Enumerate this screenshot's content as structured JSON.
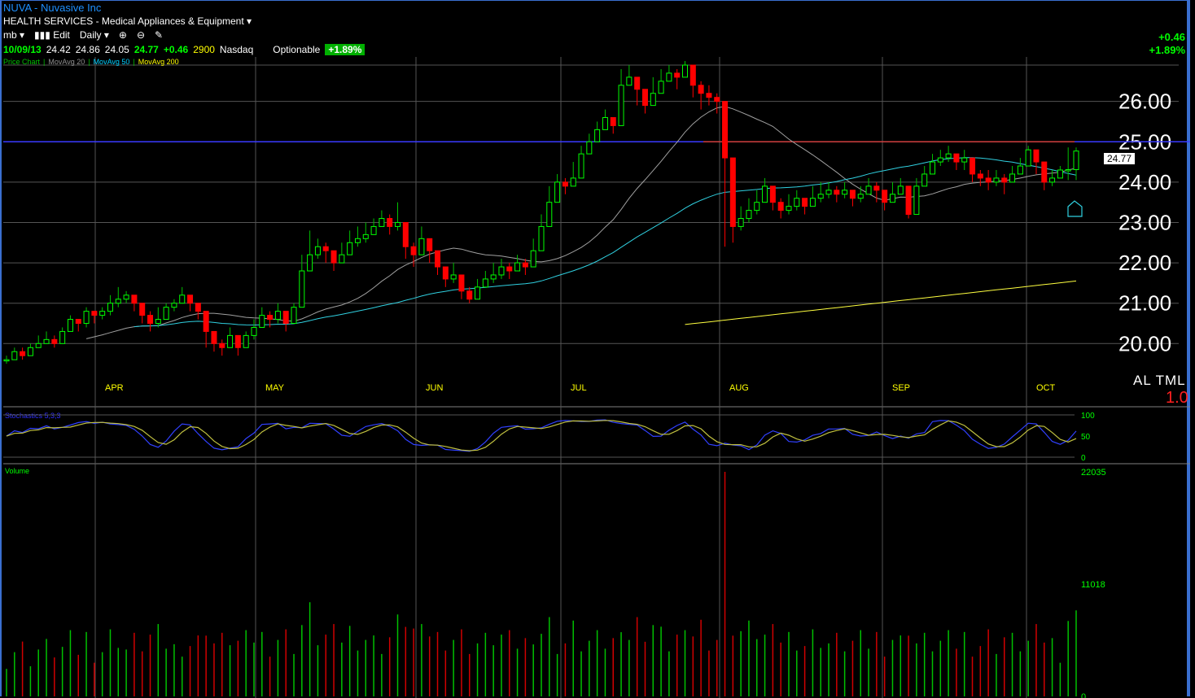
{
  "header": {
    "title": "NUVA - Nuvasive Inc",
    "industry": "HEALTH SERVICES - Medical Appliances & Equipment",
    "toolbar": {
      "profile": "mb",
      "edit": "Edit",
      "period": "Daily"
    },
    "quote": {
      "date": "10/09/13",
      "open": "24.42",
      "high": "24.86",
      "low": "24.05",
      "last": "24.77",
      "change": "+0.46",
      "volume": "2900",
      "exchange": "Nasdaq",
      "optionable": "Optionable",
      "pct": "+1.89%"
    },
    "change_right": "+0.46",
    "pct_right": "+1.89%",
    "legend": [
      "Price Chart",
      "MovAvg 20",
      "MovAvg 50",
      "MovAvg 200"
    ],
    "stoch_label": "Stochastics 5,3,3",
    "volume_label": "Volume",
    "altml": "AL TML",
    "altml_value": "1.0",
    "price_tag": "24.77"
  },
  "chart_data": {
    "type": "candlestick",
    "ylim": [
      19.2,
      26.9
    ],
    "yticks": [
      "20.00",
      "21.00",
      "22.00",
      "23.00",
      "24.00",
      "25.00",
      "26.00"
    ],
    "months": [
      "APR",
      "MAY",
      "JUN",
      "JUL",
      "AUG",
      "SEP",
      "OCT"
    ],
    "resistance": 25.0,
    "stoch_ticks": [
      "100",
      "50",
      "0"
    ],
    "volume_ticks": [
      "22035",
      "11018",
      "0"
    ],
    "candles": [
      [
        19.6,
        19.7,
        19.5
      ],
      [
        19.8,
        19.9,
        19.6
      ],
      [
        19.7,
        19.9,
        19.6
      ],
      [
        19.9,
        20.0,
        19.8
      ],
      [
        20.0,
        20.2,
        19.9
      ],
      [
        20.1,
        20.3,
        20.0
      ],
      [
        20.0,
        20.2,
        19.9
      ],
      [
        20.3,
        20.4,
        20.1
      ],
      [
        20.6,
        20.7,
        20.3
      ],
      [
        20.5,
        20.6,
        20.3
      ],
      [
        20.8,
        20.9,
        20.4
      ],
      [
        20.7,
        20.8,
        20.5
      ],
      [
        20.8,
        20.9,
        20.6
      ],
      [
        21.0,
        21.2,
        20.7
      ],
      [
        21.1,
        21.4,
        20.9
      ],
      [
        21.2,
        21.3,
        21.0
      ],
      [
        21.0,
        21.2,
        20.8
      ],
      [
        20.7,
        20.9,
        20.5
      ],
      [
        20.5,
        20.8,
        20.3
      ],
      [
        20.6,
        20.9,
        20.4
      ],
      [
        20.9,
        21.0,
        20.6
      ],
      [
        21.0,
        21.1,
        20.8
      ],
      [
        21.2,
        21.4,
        21.0
      ],
      [
        21.0,
        21.2,
        20.8
      ],
      [
        20.8,
        21.0,
        20.6
      ],
      [
        20.3,
        20.6,
        19.9
      ],
      [
        20.0,
        20.2,
        19.8
      ],
      [
        19.9,
        20.1,
        19.7
      ],
      [
        20.2,
        20.4,
        19.9
      ],
      [
        19.9,
        20.1,
        19.7
      ],
      [
        20.2,
        20.3,
        19.9
      ],
      [
        20.4,
        20.6,
        20.1
      ],
      [
        20.7,
        20.9,
        20.4
      ],
      [
        20.6,
        20.8,
        20.4
      ],
      [
        20.8,
        21.0,
        20.5
      ],
      [
        20.5,
        20.8,
        20.3
      ],
      [
        20.9,
        21.0,
        20.6
      ],
      [
        21.8,
        22.2,
        21.5
      ],
      [
        22.2,
        22.8,
        21.9
      ],
      [
        22.4,
        22.6,
        22.1
      ],
      [
        22.3,
        22.5,
        22.0
      ],
      [
        22.0,
        22.3,
        21.8
      ],
      [
        22.2,
        22.5,
        22.0
      ],
      [
        22.5,
        22.8,
        22.2
      ],
      [
        22.6,
        22.9,
        22.4
      ],
      [
        22.7,
        23.0,
        22.5
      ],
      [
        22.9,
        23.1,
        22.7
      ],
      [
        23.1,
        23.3,
        22.9
      ],
      [
        22.9,
        23.2,
        22.7
      ],
      [
        23.0,
        23.5,
        22.8
      ],
      [
        22.4,
        22.9,
        22.1
      ],
      [
        22.2,
        22.5,
        21.9
      ],
      [
        22.6,
        22.9,
        22.4
      ],
      [
        22.3,
        22.6,
        22.0
      ],
      [
        21.9,
        22.2,
        21.7
      ],
      [
        21.6,
        21.9,
        21.4
      ],
      [
        21.7,
        22.0,
        21.5
      ],
      [
        21.3,
        21.6,
        21.1
      ],
      [
        21.1,
        21.4,
        21.0
      ],
      [
        21.4,
        21.6,
        21.2
      ],
      [
        21.6,
        21.8,
        21.4
      ],
      [
        21.7,
        22.0,
        21.5
      ],
      [
        21.9,
        22.1,
        21.6
      ],
      [
        21.8,
        22.0,
        21.6
      ],
      [
        22.0,
        22.2,
        21.8
      ],
      [
        21.9,
        22.1,
        21.7
      ],
      [
        22.3,
        22.6,
        22.0
      ],
      [
        22.9,
        23.2,
        22.6
      ],
      [
        23.5,
        23.9,
        23.2
      ],
      [
        24.0,
        24.2,
        23.8
      ],
      [
        23.9,
        24.1,
        23.7
      ],
      [
        24.1,
        24.5,
        23.9
      ],
      [
        24.7,
        24.9,
        24.5
      ],
      [
        25.0,
        25.2,
        24.8
      ],
      [
        25.3,
        25.5,
        25.1
      ],
      [
        25.6,
        25.8,
        25.4
      ],
      [
        25.4,
        25.6,
        25.2
      ],
      [
        26.4,
        26.8,
        26.0
      ],
      [
        26.6,
        26.9,
        26.4
      ],
      [
        26.3,
        26.6,
        25.9
      ],
      [
        25.9,
        26.3,
        25.7
      ],
      [
        26.2,
        26.6,
        25.9
      ],
      [
        26.5,
        26.8,
        26.3
      ],
      [
        26.7,
        26.9,
        26.5
      ],
      [
        26.6,
        26.8,
        26.3
      ],
      [
        26.9,
        27.0,
        26.6
      ],
      [
        26.4,
        26.7,
        26.1
      ],
      [
        26.2,
        26.5,
        25.8
      ],
      [
        26.1,
        26.4,
        25.9
      ],
      [
        26.0,
        26.2,
        25.7
      ],
      [
        24.6,
        24.8,
        22.4
      ],
      [
        22.9,
        23.2,
        22.5
      ],
      [
        23.1,
        23.4,
        22.8
      ],
      [
        23.3,
        23.6,
        23.0
      ],
      [
        23.5,
        23.8,
        23.2
      ],
      [
        23.9,
        24.1,
        23.6
      ],
      [
        23.5,
        23.8,
        23.3
      ],
      [
        23.3,
        23.6,
        23.1
      ],
      [
        23.4,
        23.7,
        23.2
      ],
      [
        23.6,
        23.8,
        23.3
      ],
      [
        23.4,
        23.6,
        23.2
      ],
      [
        23.6,
        23.9,
        23.4
      ],
      [
        23.7,
        24.0,
        23.5
      ],
      [
        23.8,
        24.0,
        23.6
      ],
      [
        23.7,
        23.9,
        23.5
      ],
      [
        23.8,
        24.0,
        23.6
      ],
      [
        23.6,
        23.8,
        23.4
      ],
      [
        23.7,
        23.9,
        23.5
      ],
      [
        23.9,
        24.1,
        23.7
      ],
      [
        23.8,
        24.0,
        23.5
      ],
      [
        23.5,
        23.7,
        23.3
      ],
      [
        23.7,
        24.0,
        23.5
      ],
      [
        23.9,
        24.1,
        23.7
      ],
      [
        23.2,
        23.8,
        23.1
      ],
      [
        23.9,
        24.1,
        23.7
      ],
      [
        24.2,
        24.4,
        24.0
      ],
      [
        24.5,
        24.7,
        24.3
      ],
      [
        24.6,
        24.8,
        24.4
      ],
      [
        24.7,
        24.9,
        24.5
      ],
      [
        24.5,
        24.7,
        24.3
      ],
      [
        24.6,
        24.8,
        24.3
      ],
      [
        24.2,
        24.4,
        24.0
      ],
      [
        24.1,
        24.3,
        23.9
      ],
      [
        24.0,
        24.3,
        23.8
      ],
      [
        24.1,
        24.3,
        23.9
      ],
      [
        24.0,
        24.2,
        23.7
      ],
      [
        24.2,
        24.4,
        24.0
      ],
      [
        24.4,
        24.6,
        24.2
      ],
      [
        24.8,
        24.9,
        24.5
      ],
      [
        24.5,
        24.7,
        24.2
      ],
      [
        24.0,
        24.3,
        23.8
      ],
      [
        24.1,
        24.3,
        23.9
      ],
      [
        24.3,
        24.4,
        24.1
      ],
      [
        24.31,
        24.86,
        24.05
      ],
      [
        24.77,
        24.86,
        24.05
      ]
    ]
  }
}
